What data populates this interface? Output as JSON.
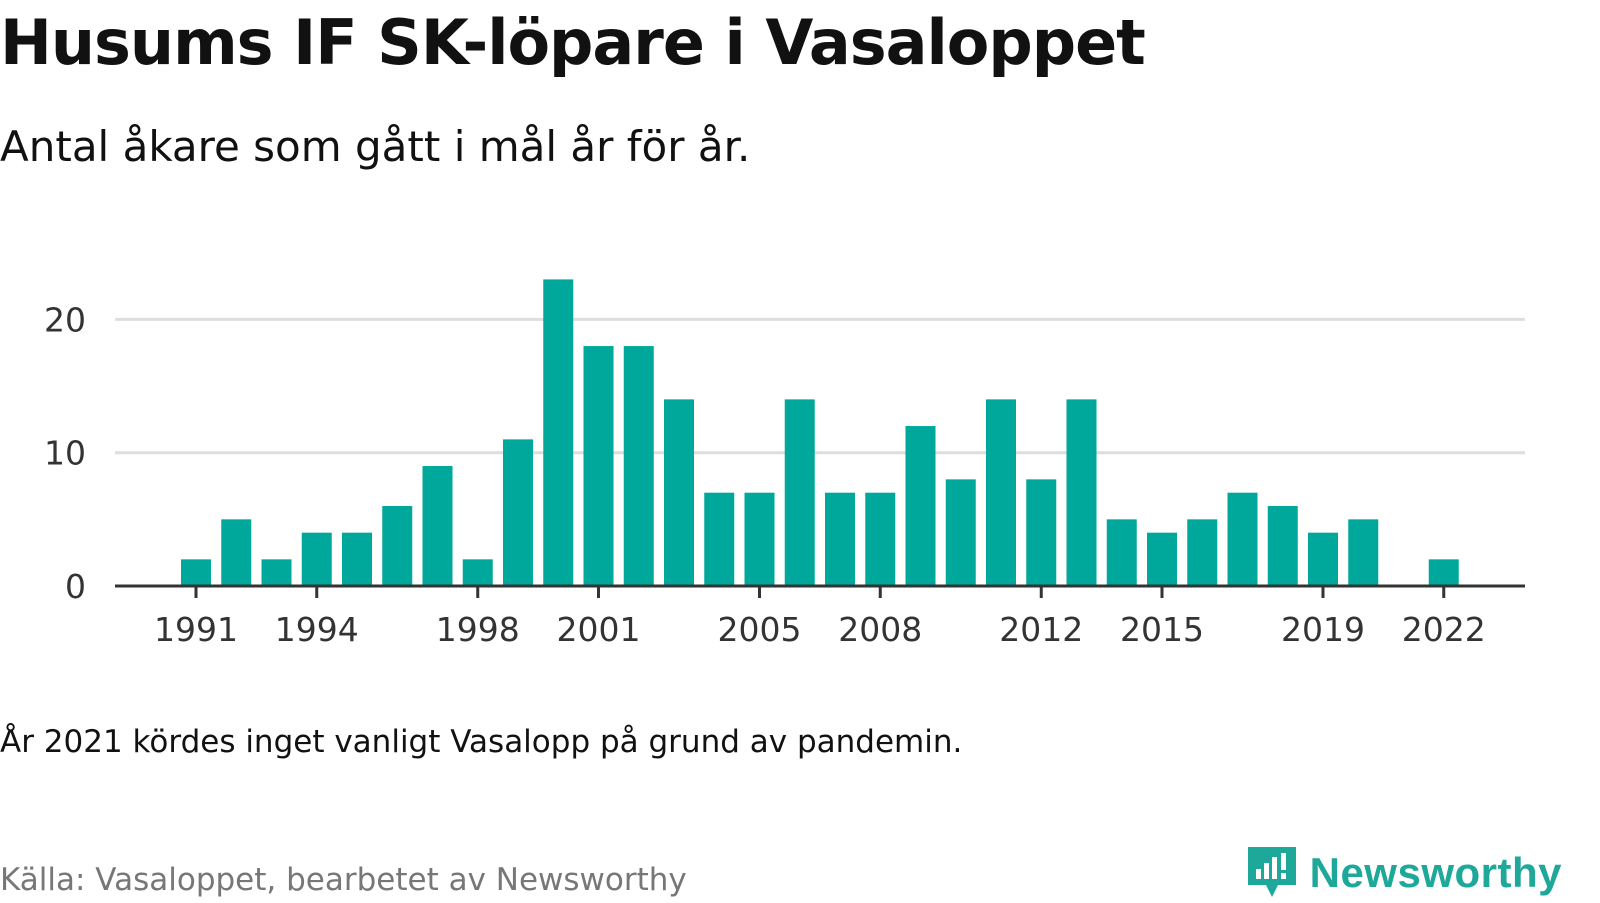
{
  "header": {
    "title": "Husums IF SK-löpare i Vasaloppet",
    "subtitle": "Antal åkare som gått i mål år för år."
  },
  "footer": {
    "note": "År 2021 kördes inget vanligt Vasalopp på grund av pandemin.",
    "source": "Källa: Vasaloppet, bearbetet av Newsworthy",
    "brand": "Newsworthy",
    "brand_icon": "newsworthy-logo-icon"
  },
  "colors": {
    "bar": "#00a89c",
    "grid": "#dddddd",
    "axis": "#333333",
    "brand": "#1ea89a"
  },
  "chart_data": {
    "type": "bar",
    "title": "Husums IF SK-löpare i Vasaloppet",
    "subtitle": "Antal åkare som gått i mål år för år.",
    "xlabel": "",
    "ylabel": "",
    "categories": [
      1991,
      1992,
      1993,
      1994,
      1995,
      1996,
      1997,
      1998,
      1999,
      2000,
      2001,
      2002,
      2003,
      2004,
      2005,
      2006,
      2007,
      2008,
      2009,
      2010,
      2011,
      2012,
      2013,
      2014,
      2015,
      2016,
      2017,
      2018,
      2019,
      2020,
      2021,
      2022
    ],
    "values": [
      2,
      5,
      2,
      4,
      4,
      6,
      9,
      2,
      11,
      23,
      18,
      18,
      14,
      7,
      7,
      14,
      7,
      7,
      12,
      8,
      14,
      8,
      14,
      5,
      4,
      5,
      7,
      6,
      4,
      5,
      null,
      2
    ],
    "x_tick_labels": [
      "1991",
      "1994",
      "1998",
      "2001",
      "2005",
      "2008",
      "2012",
      "2015",
      "2019",
      "2022"
    ],
    "y_tick_labels": [
      "0",
      "10",
      "20"
    ],
    "ylim": [
      0,
      23
    ],
    "grid": "horizontal",
    "legend": "none"
  }
}
